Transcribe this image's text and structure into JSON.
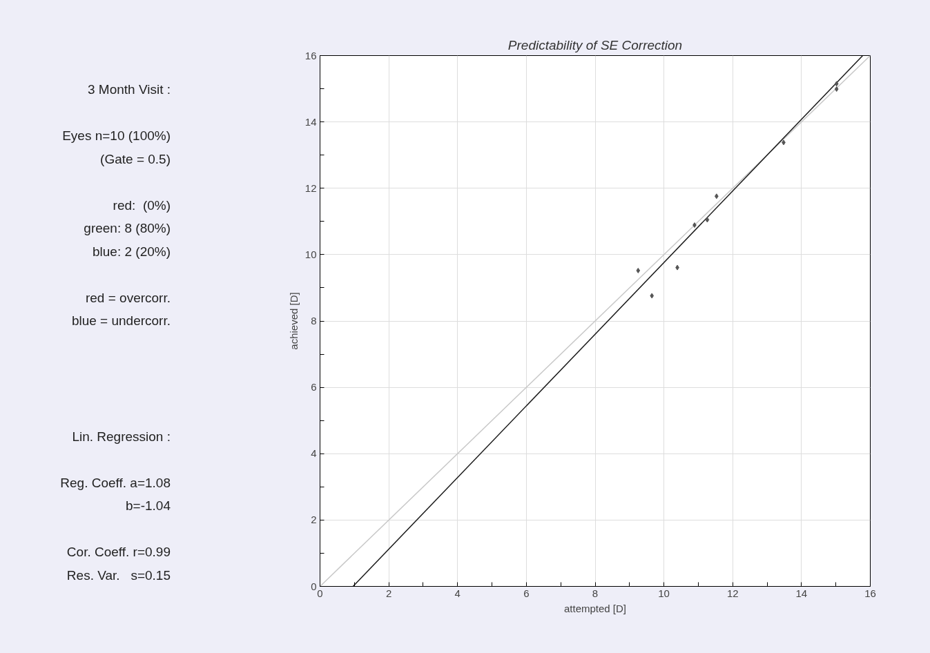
{
  "chart_data": {
    "type": "scatter",
    "title": "Predictability of SE Correction",
    "xlabel": "attempted [D]",
    "ylabel": "achieved [D]",
    "annotations": [
      "3 Month Visit :",
      "Eyes n=10 (100%)",
      "(Gate = 0.5)",
      "red:  (0%)",
      "green: 8 (80%)",
      "blue: 2 (20%)",
      "red = overcorr.",
      "blue = undercorr.",
      "Lin. Regression :",
      "Reg. Coeff. a=1.08",
      "b=-1.04",
      "Cor. Coeff. r=0.99",
      "Res. Var.   s=0.15"
    ],
    "series": [
      {
        "type": "line",
        "color": "#c8c8c8",
        "x": [
          0,
          16
        ],
        "values": [
          0,
          16
        ]
      },
      {
        "type": "line",
        "color": "#1a1a1a",
        "x": [
          0.96,
          15.78
        ],
        "values": [
          0,
          16
        ]
      },
      {
        "marker": "diamond",
        "color": "#555555",
        "x": [
          9.25,
          9.65,
          10.39,
          10.89,
          11.26,
          11.53,
          13.48,
          15.02,
          15.02
        ],
        "values": [
          9.52,
          8.76,
          9.61,
          10.89,
          11.05,
          11.76,
          13.38,
          15.15,
          14.99
        ]
      }
    ],
    "grid": true,
    "xlim": [
      0,
      16
    ],
    "ylim": [
      0,
      16
    ],
    "xticks": [
      0,
      {
        "value": 1,
        "label": null
      },
      2,
      {
        "value": 3,
        "label": null
      },
      4,
      {
        "value": 5,
        "label": null
      },
      6,
      {
        "value": 7,
        "label": null
      },
      8,
      {
        "value": 9,
        "label": null
      },
      10,
      {
        "value": 11,
        "label": null
      },
      12,
      {
        "value": 13,
        "label": null
      },
      14,
      {
        "value": 15,
        "label": null
      },
      16
    ],
    "yticks": [
      0,
      {
        "value": 1,
        "label": null
      },
      2,
      {
        "value": 3,
        "label": null
      },
      4,
      {
        "value": 5,
        "label": null
      },
      6,
      {
        "value": 7,
        "label": null
      },
      8,
      {
        "value": 9,
        "label": null
      },
      10,
      {
        "value": 11,
        "label": null
      },
      12,
      {
        "value": 13,
        "label": null
      },
      14,
      {
        "value": 15,
        "label": null
      },
      16
    ]
  }
}
